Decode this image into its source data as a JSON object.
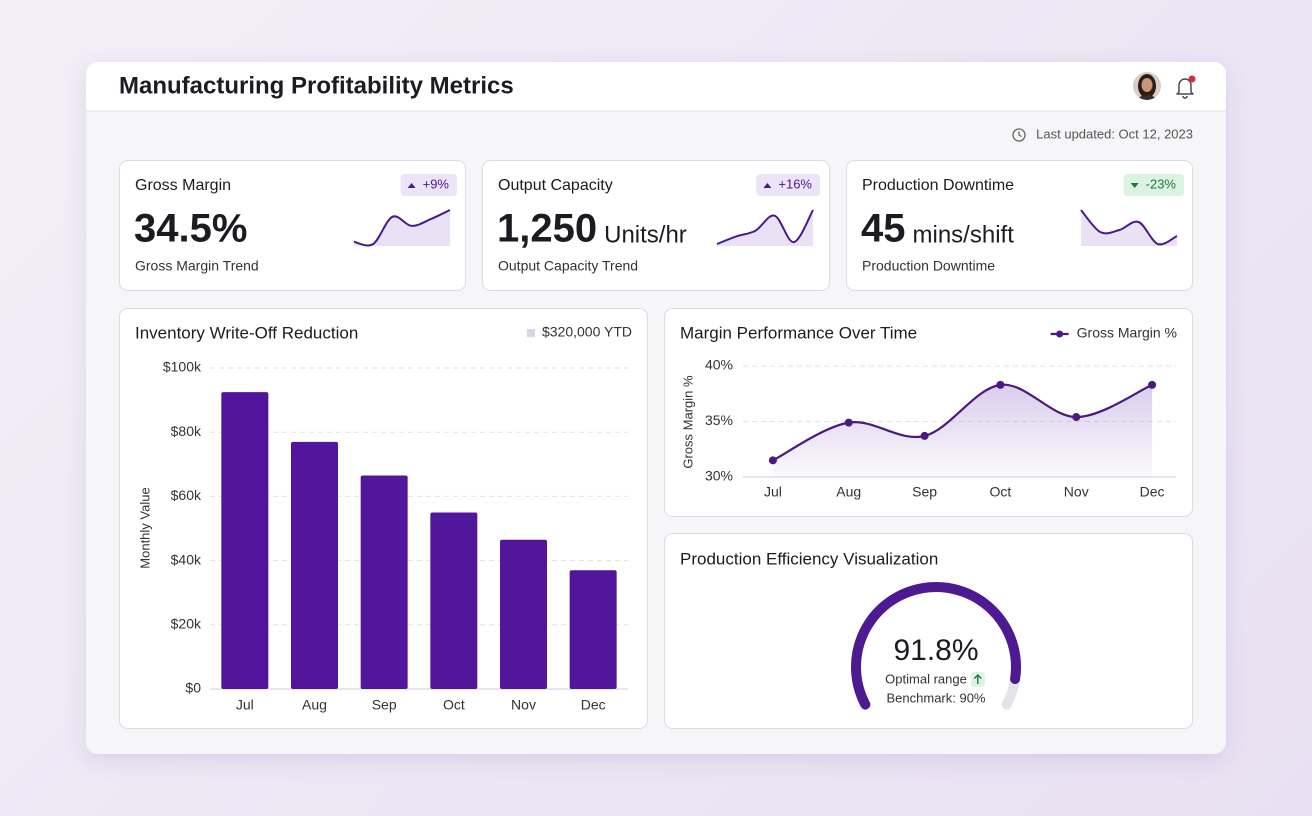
{
  "header": {
    "title": "Manufacturing Profitability Metrics",
    "last_updated": "Last updated: Oct 12, 2023"
  },
  "kpis": [
    {
      "title": "Gross Margin",
      "badge": "+9%",
      "badge_color": "#4a1a8a",
      "badge_bg": "#ece4f7",
      "value": "34.5%",
      "subtitle": "Gross Margin Trend",
      "trend": [
        2,
        1.5,
        7.5,
        5.5,
        7,
        9
      ],
      "color": "#4a1a8a"
    },
    {
      "title": "Output Capacity",
      "badge": "+16%",
      "badge_color": "#4a1a8a",
      "badge_bg": "#ece4f7",
      "value": "1,250",
      "unit": "Units/hr",
      "subtitle": "Output Capacity Trend",
      "trend": [
        1,
        3,
        4.5,
        8.5,
        1.5,
        10
      ],
      "color": "#4a1a8a"
    },
    {
      "title": "Production Downtime",
      "badge": "-23%",
      "badge_color": "#1f7a3a",
      "badge_bg": "#dcf3e2",
      "value": "45",
      "unit": "mins/shift",
      "subtitle": "Production Downtime",
      "trend": [
        9,
        3.5,
        4,
        6,
        0.5,
        2.5
      ],
      "color": "#4a1a8a"
    }
  ],
  "chart_data": [
    {
      "type": "bar",
      "title": "Inventory Write-Off Reduction",
      "legend": "$320,000 YTD",
      "legend_color": "#d9d6e2",
      "y_label": "Monthly Value",
      "categories": [
        "Jul",
        "Aug",
        "Sep",
        "Oct",
        "Nov",
        "Dec"
      ],
      "values": [
        92500,
        77000,
        66500,
        55000,
        46500,
        37000
      ],
      "color": "#52169c",
      "ylim": [
        0,
        100000
      ],
      "yticks": [
        {
          "value": 0,
          "label": "$0"
        },
        {
          "value": 20000,
          "label": "$20k"
        },
        {
          "value": 40000,
          "label": "$40k"
        },
        {
          "value": 60000,
          "label": "$60k"
        },
        {
          "value": 80000,
          "label": "$80k"
        },
        {
          "value": 100000,
          "label": "$100k"
        }
      ],
      "grid": true
    },
    {
      "type": "line",
      "title": "Margin Performance Over Time",
      "y_label": "Gross Margin %",
      "categories": [
        "Jul",
        "Aug",
        "Sep",
        "Oct",
        "Nov",
        "Dec"
      ],
      "series": [
        {
          "name": "Gross Margin %",
          "color": "#4a1a7e",
          "values": [
            31.5,
            34.9,
            33.7,
            38.3,
            35.4,
            38.3
          ]
        }
      ],
      "ylim": [
        30,
        40
      ],
      "yticks": [
        {
          "value": 30,
          "label": "30%"
        },
        {
          "value": 35,
          "label": "35%"
        },
        {
          "value": 40,
          "label": "40%"
        }
      ],
      "grid": true,
      "legend": "top-right"
    },
    {
      "type": "gauge",
      "title": "Production Efficiency Visualization",
      "value": 91.8,
      "value_label": "91.8%",
      "ylim": [
        0,
        100
      ],
      "color": "#4e1a92",
      "track_color": "#e4e3e8",
      "status": "Optimal range",
      "benchmark": "Benchmark: 90%"
    }
  ]
}
